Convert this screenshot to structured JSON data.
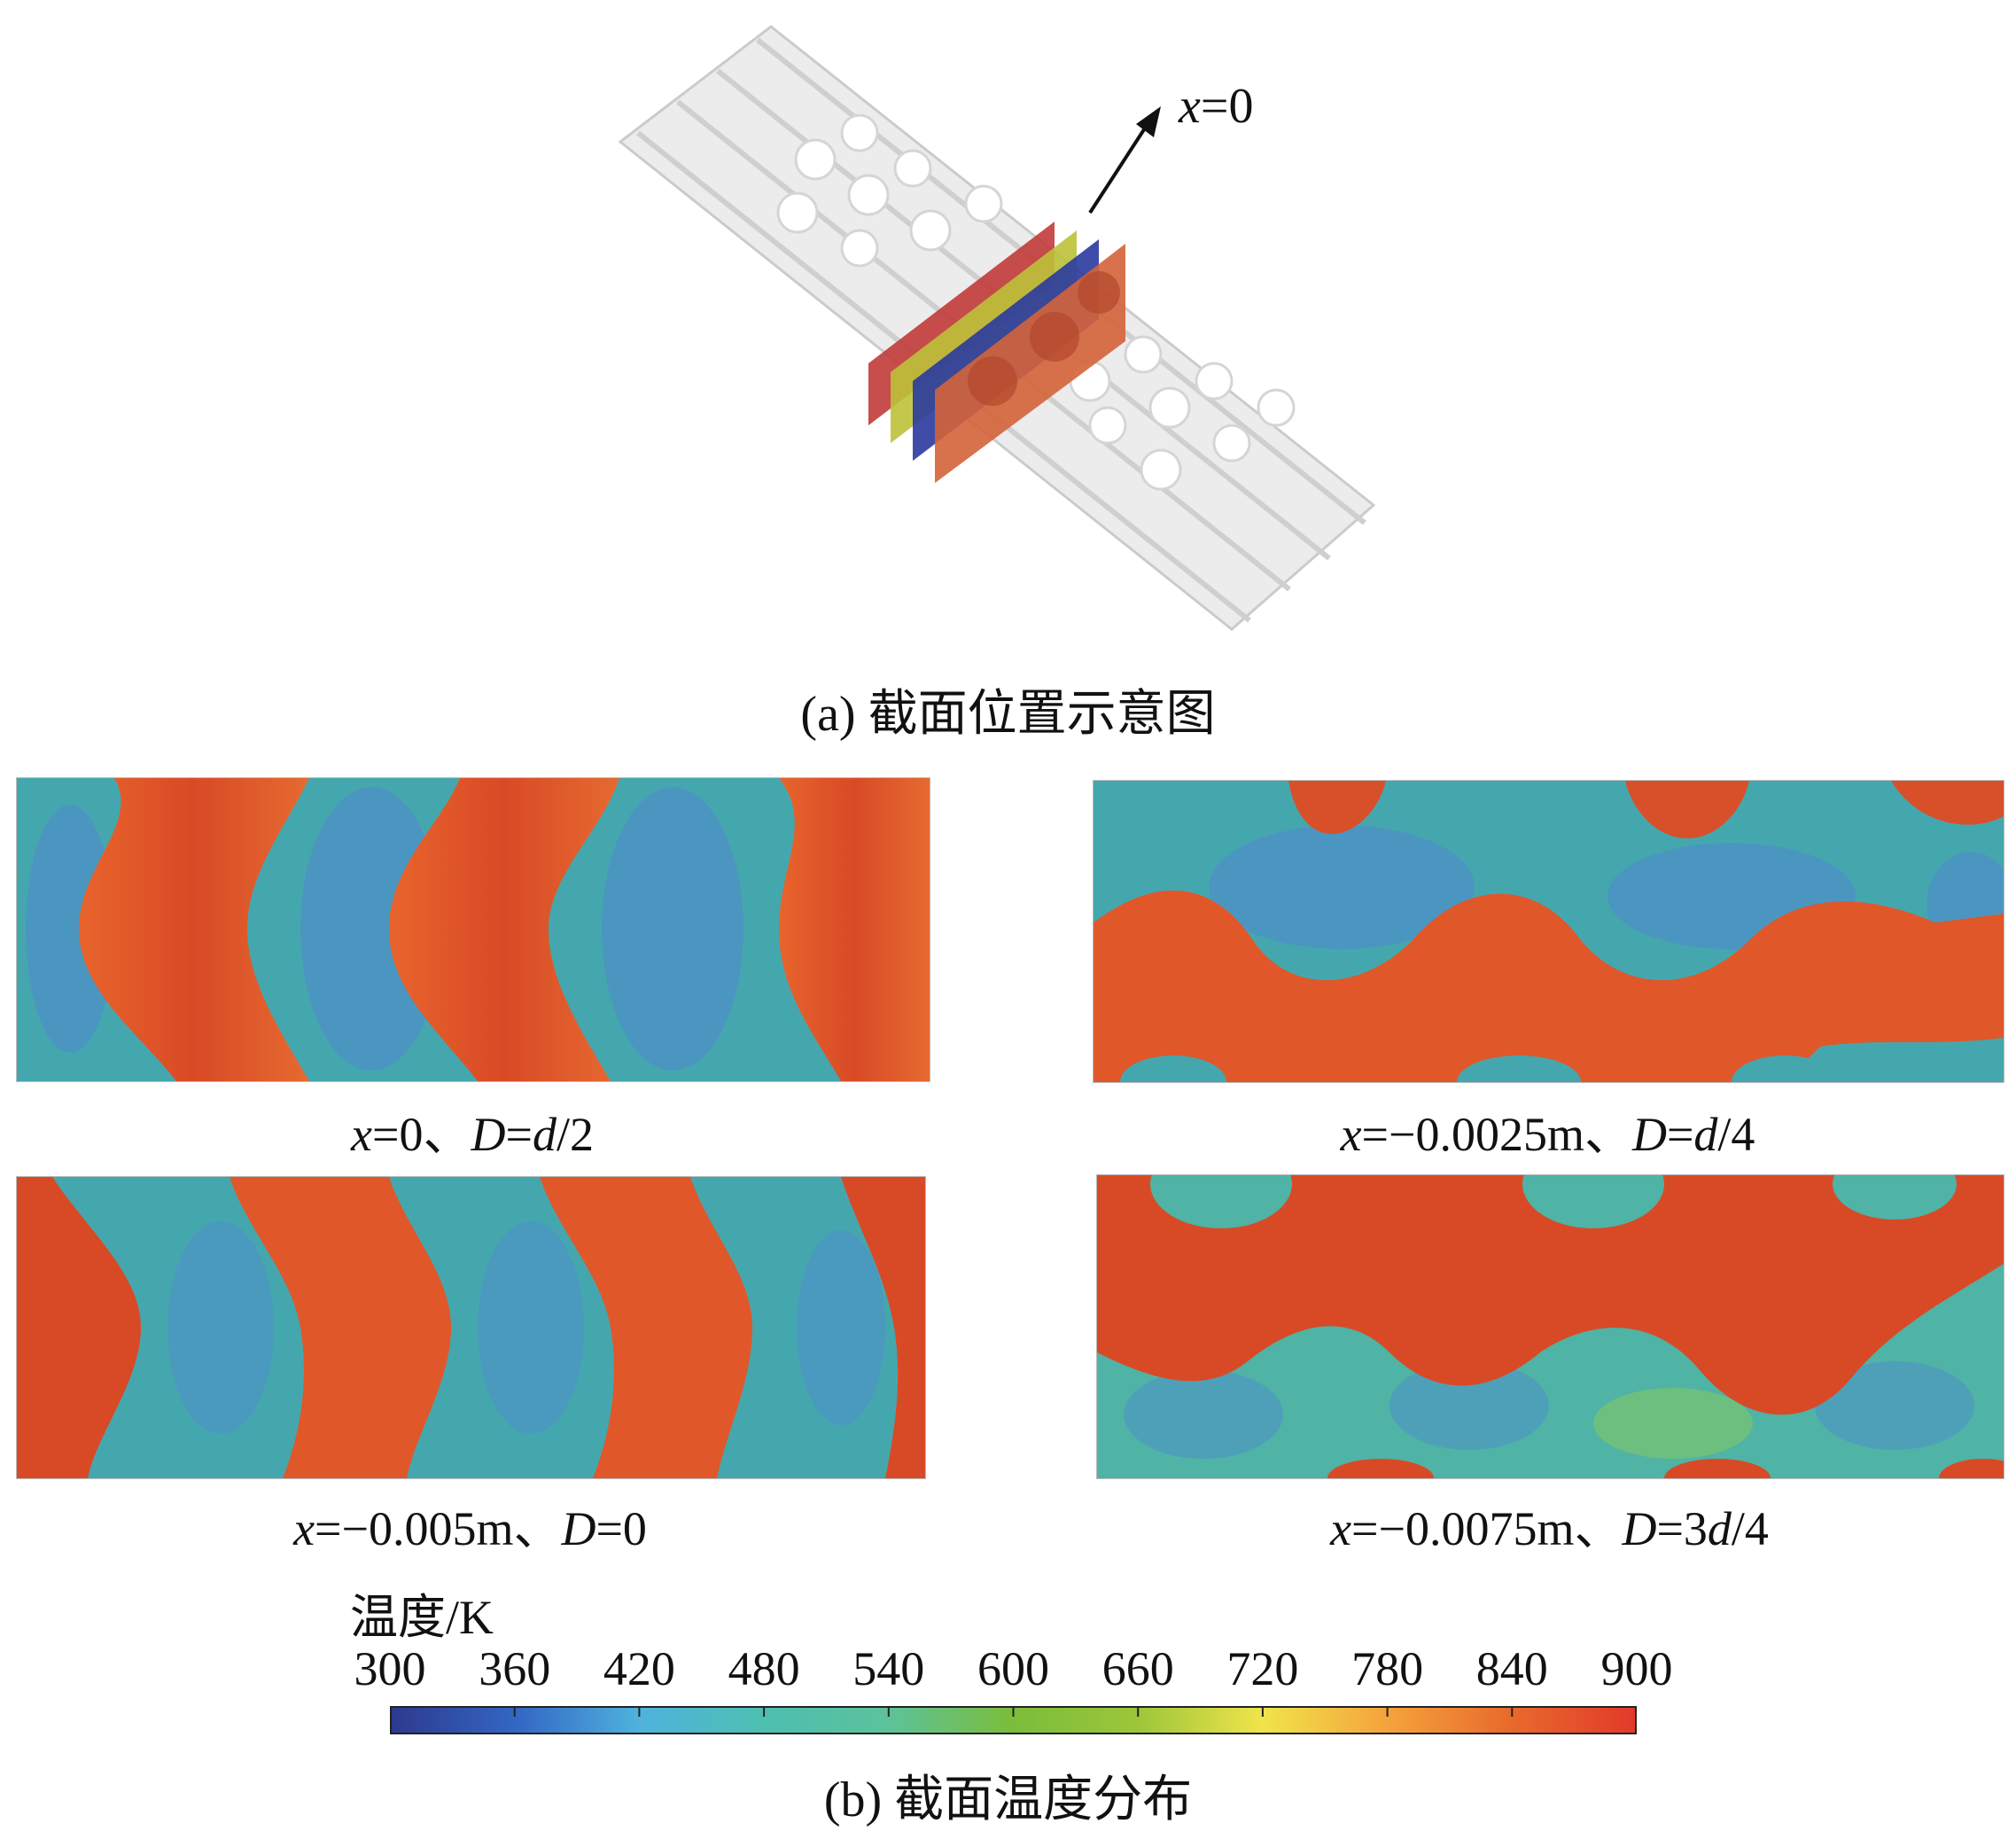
{
  "figure_a": {
    "arrow_label_var": "x",
    "arrow_label_rest": "=0",
    "caption": "(a) 截面位置示意图"
  },
  "panels": [
    {
      "var1": "x",
      "rest1": "=0、",
      "var2": "D",
      "eq": "=",
      "var3": "d",
      "rest2": "/2"
    },
    {
      "var1": "x",
      "rest1": "=−0.0025m、",
      "var2": "D",
      "eq": "=",
      "var3": "d",
      "rest2": "/4"
    },
    {
      "var1": "x",
      "rest1": "=−0.005m、",
      "var2": "D",
      "eq": "=0",
      "var3": "",
      "rest2": ""
    },
    {
      "var1": "x",
      "rest1": "=−0.0075m、",
      "var2": "D",
      "eq": "=3",
      "var3": "d",
      "rest2": "/4"
    }
  ],
  "colorbar": {
    "title": "温度/K",
    "ticks": [
      "300",
      "360",
      "420",
      "480",
      "540",
      "600",
      "660",
      "720",
      "780",
      "840",
      "900"
    ],
    "colors": [
      "#2d3a8e",
      "#3366c4",
      "#4fb3dd",
      "#4dbfb0",
      "#5cc29a",
      "#7bbd3a",
      "#9cc63a",
      "#f0e44a",
      "#f5a33c",
      "#e86a2c",
      "#e23a2a"
    ]
  },
  "figure_b": {
    "caption": "(b) 截面温度分布"
  }
}
